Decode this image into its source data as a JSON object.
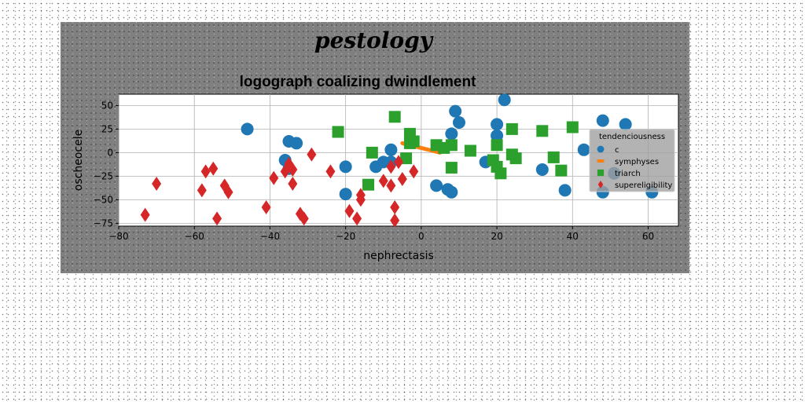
{
  "brand": "pestology",
  "chart_data": {
    "type": "scatter",
    "title": "logograph coalizing dwindlement",
    "xlabel": "nephrectasis",
    "ylabel": "oscheocele",
    "xlim": [
      -80,
      68
    ],
    "ylim": [
      -78,
      62
    ],
    "xticks": [
      -80,
      -60,
      -40,
      -20,
      0,
      20,
      40,
      60
    ],
    "yticks": [
      50,
      25,
      0,
      -25,
      -50,
      -75
    ],
    "grid": true,
    "legend": {
      "title": "tendenciousness",
      "placement": "right"
    },
    "series": [
      {
        "name": "c",
        "marker": "circle",
        "color": "#1f77b4",
        "points": [
          [
            -46,
            25
          ],
          [
            -36,
            -8
          ],
          [
            -35,
            12
          ],
          [
            -33,
            10
          ],
          [
            -35,
            -17
          ],
          [
            -20,
            -15
          ],
          [
            -20,
            -44
          ],
          [
            -12,
            -15
          ],
          [
            -10,
            -10
          ],
          [
            -8,
            3
          ],
          [
            -8,
            -10
          ],
          [
            4,
            -35
          ],
          [
            7,
            -39
          ],
          [
            8,
            -42
          ],
          [
            8,
            20
          ],
          [
            9,
            44
          ],
          [
            10,
            32
          ],
          [
            17,
            -10
          ],
          [
            20,
            30
          ],
          [
            20,
            18
          ],
          [
            22,
            56
          ],
          [
            32,
            -18
          ],
          [
            38,
            -40
          ],
          [
            43,
            3
          ],
          [
            48,
            34
          ],
          [
            48,
            -42
          ],
          [
            51,
            -22
          ],
          [
            54,
            30
          ],
          [
            61,
            -42
          ]
        ]
      },
      {
        "name": "symphyses",
        "marker": "line",
        "color": "#ff7f0e",
        "points": [
          [
            -5,
            10
          ],
          [
            5,
            0
          ]
        ]
      },
      {
        "name": "triarch",
        "marker": "square",
        "color": "#2ca02c",
        "points": [
          [
            -22,
            22
          ],
          [
            -13,
            0
          ],
          [
            -14,
            -34
          ],
          [
            -7,
            38
          ],
          [
            -4,
            -6
          ],
          [
            -3,
            20
          ],
          [
            -2,
            12
          ],
          [
            -3,
            10
          ],
          [
            4,
            8
          ],
          [
            6,
            5
          ],
          [
            8,
            8
          ],
          [
            8,
            -16
          ],
          [
            13,
            2
          ],
          [
            19,
            -8
          ],
          [
            20,
            8
          ],
          [
            20,
            -15
          ],
          [
            21,
            -22
          ],
          [
            24,
            -2
          ],
          [
            24,
            25
          ],
          [
            25,
            -6
          ],
          [
            32,
            23
          ],
          [
            35,
            -5
          ],
          [
            37,
            -19
          ],
          [
            40,
            27
          ]
        ]
      },
      {
        "name": "supereligibility",
        "marker": "diamond",
        "color": "#d62728",
        "points": [
          [
            -73,
            -66
          ],
          [
            -70,
            -33
          ],
          [
            -58,
            -40
          ],
          [
            -57,
            -20
          ],
          [
            -55,
            -17
          ],
          [
            -54,
            -70
          ],
          [
            -52,
            -35
          ],
          [
            -51,
            -42
          ],
          [
            -41,
            -58
          ],
          [
            -39,
            -27
          ],
          [
            -36,
            -20
          ],
          [
            -35,
            -12
          ],
          [
            -34,
            -33
          ],
          [
            -34,
            -18
          ],
          [
            -32,
            -65
          ],
          [
            -31,
            -70
          ],
          [
            -29,
            -2
          ],
          [
            -24,
            -20
          ],
          [
            -19,
            -62
          ],
          [
            -17,
            -70
          ],
          [
            -16,
            -45
          ],
          [
            -16,
            -50
          ],
          [
            -10,
            -30
          ],
          [
            -8,
            -35
          ],
          [
            -8,
            -15
          ],
          [
            -7,
            -58
          ],
          [
            -6,
            -10
          ],
          [
            -5,
            -28
          ],
          [
            -2,
            -20
          ],
          [
            -7,
            -72
          ]
        ]
      }
    ]
  }
}
